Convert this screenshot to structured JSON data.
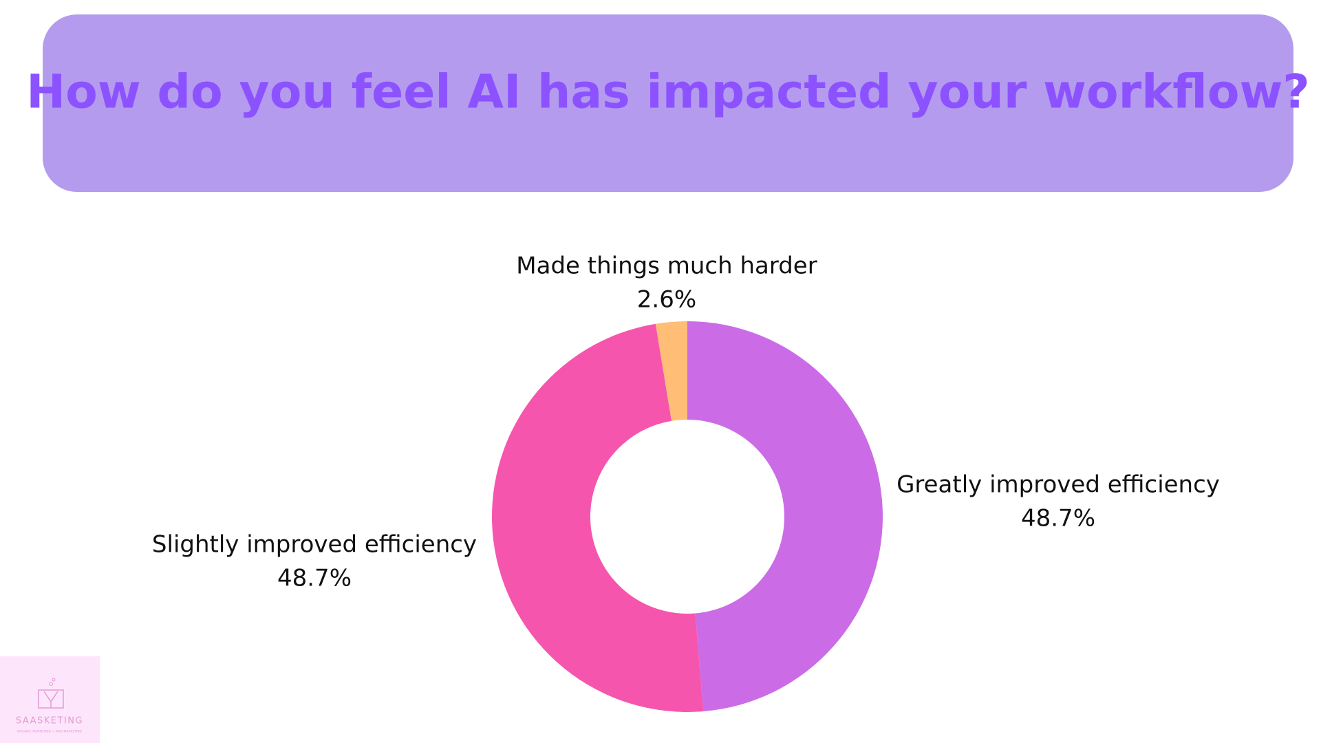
{
  "chart_data": {
    "type": "donut",
    "title": "How do you feel AI has impacted your workflow?",
    "categories": [
      "Greatly improved efficiency",
      "Slightly improved efficiency",
      "Made things much harder"
    ],
    "values": [
      48.7,
      48.7,
      2.6
    ],
    "value_labels": [
      "48.7%",
      "48.7%",
      "2.6%"
    ],
    "colors": [
      "#cb6ce6",
      "#f655ad",
      "#ffbd76"
    ]
  },
  "logo": {
    "name": "SAASKETING",
    "tagline": "ORGANIC MARKETING + PAID MARKETING"
  }
}
